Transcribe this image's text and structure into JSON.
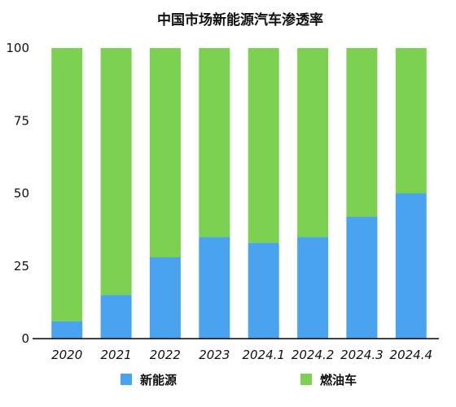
{
  "chart_data": {
    "type": "bar",
    "stacked": true,
    "title": "中国市场新能源汽车渗透率",
    "categories": [
      "2020",
      "2021",
      "2022",
      "2023",
      "2024.1",
      "2024.2",
      "2024.3",
      "2024.4"
    ],
    "series": [
      {
        "name": "新能源",
        "color": "#4aa3ee",
        "values": [
          6,
          15,
          28,
          35,
          33,
          35,
          42,
          50
        ]
      },
      {
        "name": "燃油车",
        "color": "#7dd151",
        "values": [
          94,
          85,
          72,
          65,
          67,
          65,
          58,
          50
        ]
      }
    ],
    "ylim": [
      0,
      100
    ],
    "yticks": [
      "0",
      "25",
      "50",
      "75",
      "100"
    ],
    "grid": false,
    "legend_position": "bottom"
  }
}
